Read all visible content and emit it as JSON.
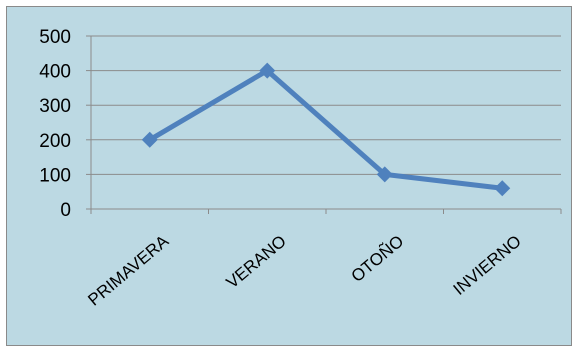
{
  "colors": {
    "background": "#bcd9e3",
    "series": "#4f81bd",
    "gridline": "#8b8b8b",
    "axis": "#8b8b8b"
  },
  "chart_data": {
    "type": "line",
    "categories": [
      "PRIMAVERA",
      "VERANO",
      "OTOÑO",
      "INVIERNO"
    ],
    "series": [
      {
        "values": [
          200,
          400,
          100,
          60
        ]
      }
    ],
    "ylim": [
      0,
      500
    ],
    "yticks": [
      0,
      100,
      200,
      300,
      400,
      500
    ],
    "grid": true,
    "legend": "none",
    "marker": "diamond"
  }
}
